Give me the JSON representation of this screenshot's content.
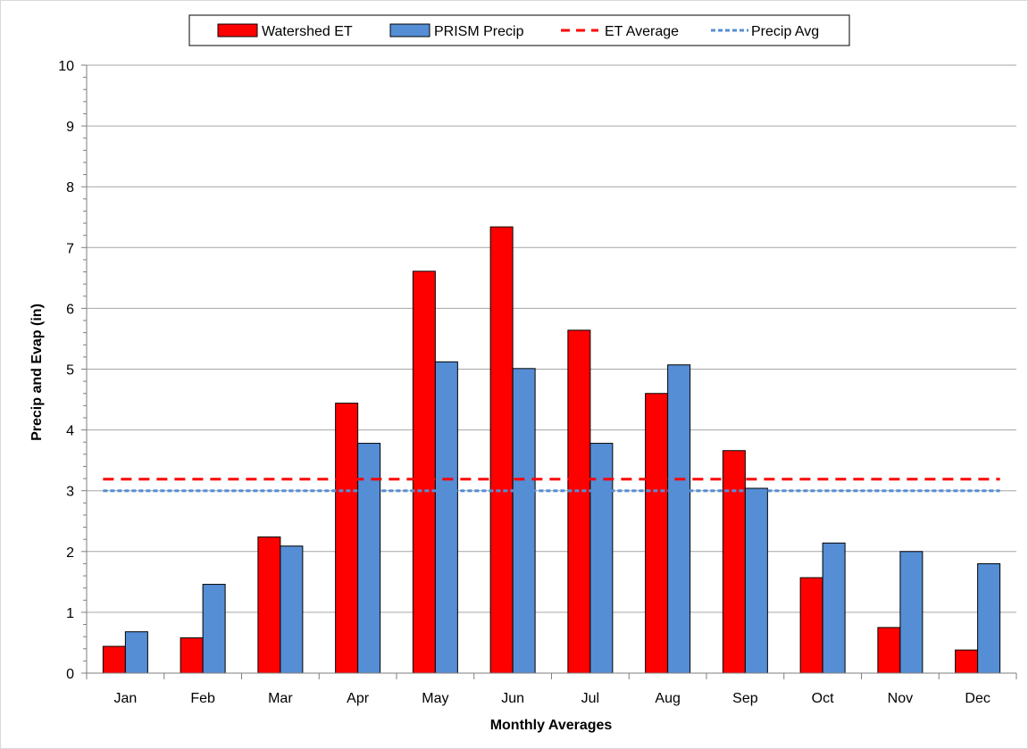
{
  "chart_data": {
    "type": "bar",
    "title": "",
    "xlabel": "Monthly Averages",
    "ylabel": "Precip and Evap (in)",
    "ylim": [
      0,
      10
    ],
    "yticks": [
      0,
      1,
      2,
      3,
      4,
      5,
      6,
      7,
      8,
      9,
      10
    ],
    "grid": true,
    "legend_position": "top",
    "categories": [
      "Jan",
      "Feb",
      "Mar",
      "Apr",
      "May",
      "Jun",
      "Jul",
      "Aug",
      "Sep",
      "Oct",
      "Nov",
      "Dec"
    ],
    "series": [
      {
        "name": "Watershed ET",
        "kind": "bar",
        "color": "#ff0000",
        "values": [
          0.44,
          0.58,
          2.24,
          4.44,
          6.61,
          7.34,
          5.64,
          4.6,
          3.66,
          1.57,
          0.75,
          0.38
        ]
      },
      {
        "name": "PRISM Precip",
        "kind": "bar",
        "color": "#558ed5",
        "values": [
          0.68,
          1.46,
          2.09,
          3.78,
          5.12,
          5.01,
          3.78,
          5.07,
          3.04,
          2.14,
          2.0,
          1.8
        ]
      }
    ],
    "reference_lines": [
      {
        "name": "ET Average",
        "kind": "dashed-line",
        "color": "#ff0000",
        "value": 3.19
      },
      {
        "name": "Precip Avg",
        "kind": "dotted-line",
        "color": "#558ed5",
        "value": 3.0
      }
    ]
  }
}
